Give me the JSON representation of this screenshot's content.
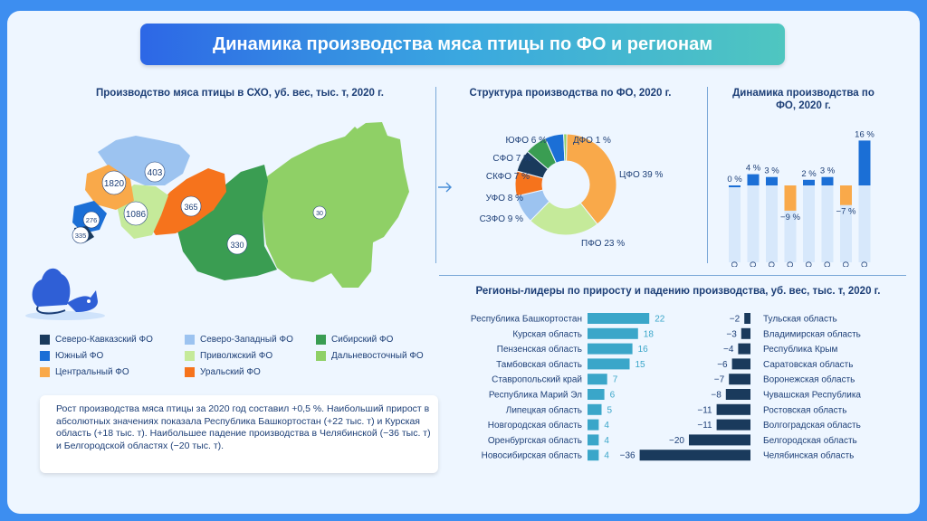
{
  "title": "Динамика производства мяса птицы по ФО и регионам",
  "map": {
    "heading": "Производство мяса птицы в СХО, уб. вес, тыс. т, 2020 г.",
    "labels": [
      {
        "district": "Северо-Западный ФО",
        "value": "403"
      },
      {
        "district": "Центральный ФО",
        "value": "1820"
      },
      {
        "district": "Приволжский ФО",
        "value": "1086"
      },
      {
        "district": "Уральский ФО",
        "value": "365"
      },
      {
        "district": "Сибирский ФО",
        "value": "330"
      },
      {
        "district": "Дальневосточный ФО",
        "value": "30"
      },
      {
        "district": "Южный ФО",
        "value": "276"
      },
      {
        "district": "Северо-Кавказский ФО",
        "value": "335"
      }
    ]
  },
  "legend": [
    {
      "label": "Северо-Кавказский ФО",
      "color": "#1a3a5c"
    },
    {
      "label": "Северо-Западный ФО",
      "color": "#9cc3f0"
    },
    {
      "label": "Сибирский ФО",
      "color": "#3a9d52"
    },
    {
      "label": "Южный ФО",
      "color": "#1b6fd6"
    },
    {
      "label": "Приволжский ФО",
      "color": "#c5ea9a"
    },
    {
      "label": "Дальневосточный ФО",
      "color": "#8fd066"
    },
    {
      "label": "Центральный ФО",
      "color": "#f9a94a"
    },
    {
      "label": "Уральский ФО",
      "color": "#f6731c"
    }
  ],
  "note": "Рост производства мяса птицы за 2020 год составил +0,5 %. Наибольший прирост в абсолютных значениях показала Республика Башкортостан (+22 тыс. т) и Курская область (+18 тыс. т). Наибольшее падение производства в Челябинской (−36 тыс. т) и Белгородской областях (−20 тыс. т).",
  "chart_data": [
    {
      "type": "pie",
      "title": "Структура производства по ФО, 2020 г.",
      "categories": [
        "ЦФО",
        "ПФО",
        "СЗФО",
        "УФО",
        "СКФО",
        "СФО",
        "ЮФО",
        "ДФО"
      ],
      "values": [
        39,
        23,
        9,
        8,
        7,
        7,
        6,
        1
      ],
      "labels": [
        "ЦФО 39 %",
        "ПФО 23 %",
        "СЗФО 9 %",
        "УФО 8 %",
        "СКФО 7 %",
        "СФО 7 %",
        "ЮФО 6 %",
        "ДФО 1 %"
      ],
      "colors": [
        "#f9a94a",
        "#c5ea9a",
        "#9cc3f0",
        "#f6731c",
        "#1a3a5c",
        "#3a9d52",
        "#1b6fd6",
        "#8fd066"
      ]
    },
    {
      "type": "bar",
      "title": "Динамика производства по ФО, 2020 г.",
      "categories": [
        "ЦФО",
        "ПФО",
        "СЗФО",
        "УФО",
        "СКФО",
        "СФО",
        "ЮФО",
        "ДФО"
      ],
      "values": [
        0,
        4,
        3,
        -9,
        2,
        3,
        -7,
        16
      ],
      "labels": [
        "0 %",
        "4 %",
        "3 %",
        "−9 %",
        "2 %",
        "3 %",
        "−7 %",
        "16 %"
      ],
      "colors": {
        "positive": "#1b6fd6",
        "negative": "#f9a94a"
      }
    },
    {
      "type": "bar",
      "title": "Регионы-лидеры по приросту и падению производства, уб. вес, тыс. т, 2020 г.",
      "series": [
        {
          "name": "прирост",
          "categories": [
            "Республика Башкортостан",
            "Курская область",
            "Пензенская область",
            "Тамбовская область",
            "Ставропольский край",
            "Республика Марий Эл",
            "Липецкая область",
            "Новгородская область",
            "Оренбургская область",
            "Новосибирская область"
          ],
          "values": [
            22,
            18,
            16,
            15,
            7,
            6,
            5,
            4,
            4,
            4
          ],
          "color": "#3aa6c9"
        },
        {
          "name": "падение",
          "categories": [
            "Тульская область",
            "Владимирская область",
            "Республика Крым",
            "Саратовская область",
            "Воронежская область",
            "Чувашская Республика",
            "Ростовская область",
            "Волгоградская область",
            "Белгородская область",
            "Челябинская область"
          ],
          "values": [
            -2,
            -3,
            -4,
            -6,
            -7,
            -8,
            -11,
            -11,
            -20,
            -36
          ],
          "labels": [
            "−2",
            "−3",
            "−4",
            "−6",
            "−7",
            "−8",
            "−11",
            "−11",
            "−20",
            "−36"
          ],
          "color": "#1a3a5c"
        }
      ]
    }
  ]
}
